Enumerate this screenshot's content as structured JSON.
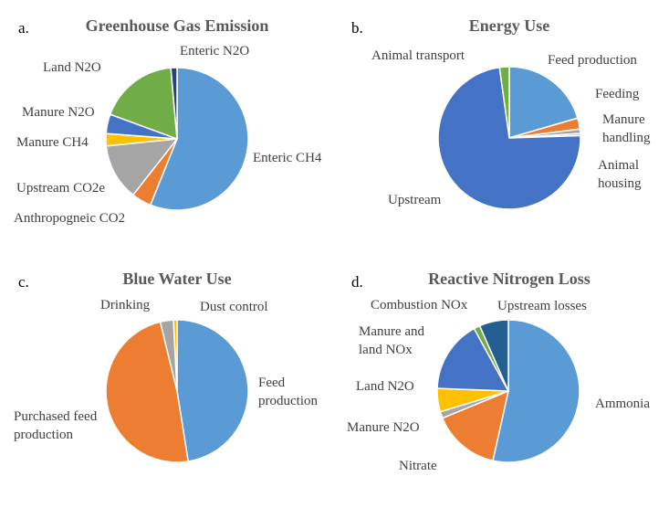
{
  "chart_data": [
    {
      "type": "pie",
      "panel_label": "a.",
      "title": "Greenhouse Gas Emission",
      "categories": [
        "Enteric CH4",
        "Anthropogneic CO2",
        "Upstream CO2e",
        "Manure CH4",
        "Manure N2O",
        "Land N2O",
        "Enteric N2O"
      ],
      "values": [
        56.1,
        4.5,
        12.8,
        2.8,
        4.4,
        18.0,
        1.4
      ],
      "colors": [
        "#5B9BD5",
        "#ED7D31",
        "#A5A5A5",
        "#FFC000",
        "#4472C4",
        "#70AD47",
        "#264478"
      ]
    },
    {
      "type": "pie",
      "panel_label": "b.",
      "title": "Energy Use",
      "categories": [
        "Feed production",
        "Feeding",
        "Manure handling",
        "Animal housing",
        "Upstream",
        "Animal transport"
      ],
      "values": [
        20.5,
        2.5,
        1.0,
        0.5,
        73.3,
        2.2
      ],
      "colors": [
        "#5B9BD5",
        "#ED7D31",
        "#A5A5A5",
        "#FFC000",
        "#4472C4",
        "#70AD47"
      ]
    },
    {
      "type": "pie",
      "panel_label": "c.",
      "title": "Blue Water Use",
      "categories": [
        "Feed production",
        "Purchased feed production",
        "Drinking",
        "Dust control"
      ],
      "values": [
        47.5,
        48.7,
        3.0,
        0.8
      ],
      "colors": [
        "#5B9BD5",
        "#ED7D31",
        "#A5A5A5",
        "#FFC000"
      ]
    },
    {
      "type": "pie",
      "panel_label": "d.",
      "title": "Reactive Nitrogen Loss",
      "categories": [
        "Ammonia",
        "Nitrate",
        "Manure N2O",
        "Land N2O",
        "Manure and land NOx",
        "Combustion NOx",
        "Upstream losses"
      ],
      "values": [
        53.5,
        15.3,
        1.5,
        5.3,
        16.4,
        1.4,
        6.6
      ],
      "colors": [
        "#5B9BD5",
        "#ED7D31",
        "#A5A5A5",
        "#FFC000",
        "#4472C4",
        "#70AD47",
        "#255E91"
      ]
    }
  ]
}
